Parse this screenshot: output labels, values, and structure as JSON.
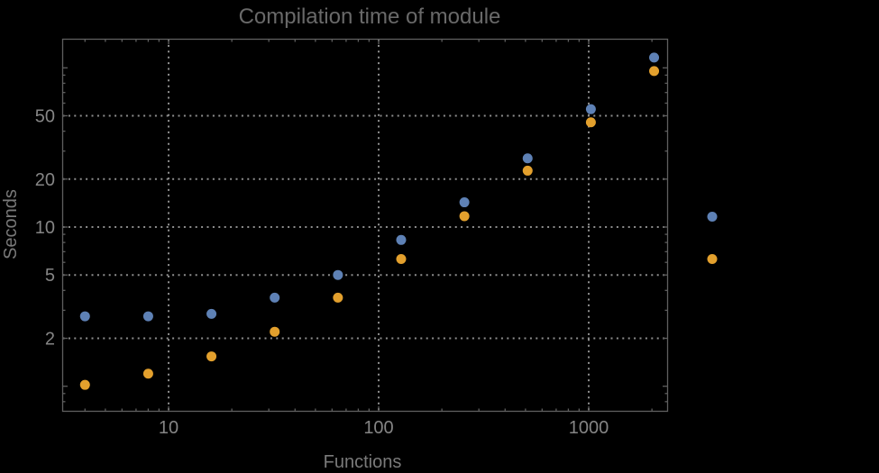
{
  "title": "Compilation time of module",
  "x_axis": {
    "label": "Functions"
  },
  "y_axis": {
    "label": "Seconds"
  },
  "colors": {
    "background": "#000000",
    "frame": "#5f5f5f",
    "gridlines": "#8e8e8e",
    "tick_text": "#858585",
    "axis_label_text": "#7a7a7a",
    "title_text": "#696969",
    "series1": "#5e81b5",
    "series2": "#e3a02d"
  },
  "chart_data": {
    "type": "scatter",
    "title": "Compilation time of module",
    "xlabel": "Functions",
    "ylabel": "Seconds",
    "x_scale": "log",
    "y_scale": "log",
    "grid": "dotted",
    "x": [
      4,
      8,
      16,
      32,
      64,
      128,
      256,
      512,
      1024,
      2048
    ],
    "series": [
      {
        "name": "series-1",
        "color": "#5e81b5",
        "values": [
          2.75,
          2.75,
          2.85,
          3.6,
          5.0,
          8.3,
          14.3,
          27,
          55,
          116
        ]
      },
      {
        "name": "series-2",
        "color": "#e3a02d",
        "values": [
          1.02,
          1.2,
          1.54,
          2.2,
          3.6,
          6.3,
          11.7,
          22.6,
          45.5,
          95.5
        ]
      }
    ],
    "x_ticks": [
      10,
      100,
      1000
    ],
    "y_ticks": [
      2,
      5,
      10,
      20,
      50
    ],
    "y_unlabeled_major_ticks": [
      1,
      100
    ],
    "x_range": [
      3.13,
      2360
    ],
    "y_range": [
      0.71,
      150
    ],
    "legend": {
      "position": "right-outside",
      "visible_markers": 2,
      "labels_visible": false
    }
  }
}
